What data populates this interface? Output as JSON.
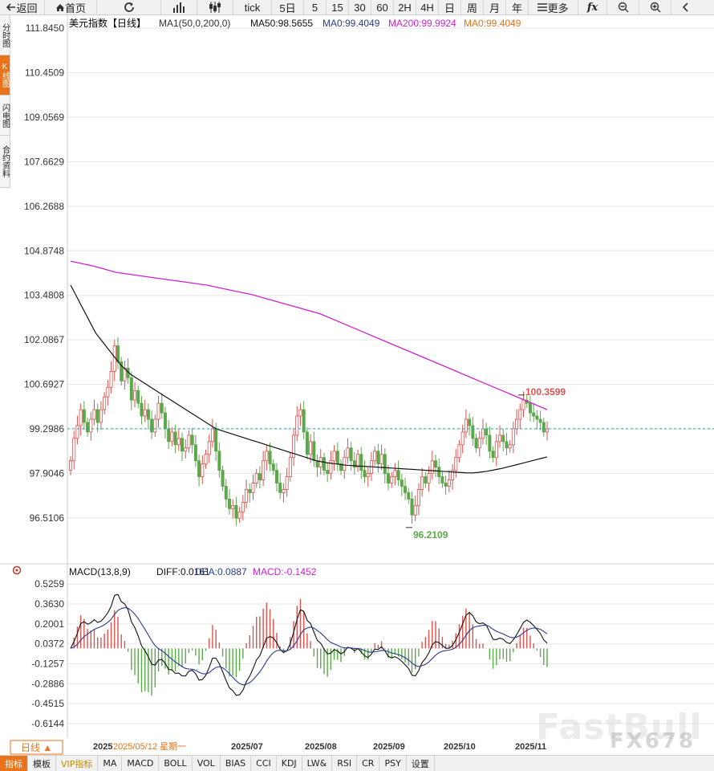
{
  "toolbar": {
    "back": "返回",
    "home": "首页",
    "tick": "tick",
    "d5": "5日",
    "m5": "5",
    "m15": "15",
    "m30": "30",
    "m60": "60",
    "h2": "2H",
    "h4": "4H",
    "day": "日",
    "week": "周",
    "month": "月",
    "year": "年",
    "more": "更多"
  },
  "sidebar": {
    "items": [
      "分时图",
      "K线图",
      "闪电图",
      "合约资料"
    ]
  },
  "bottom": {
    "period": "日线 ▲",
    "date_label": "2025/05/12 星期一",
    "tabs": [
      "指标",
      "模板",
      "VIP指标",
      "MA",
      "MACD",
      "BOLL",
      "VOL",
      "BIAS",
      "CCI",
      "KDJ",
      "LW&",
      "RSI",
      "CR",
      "PSY",
      "设置"
    ]
  },
  "watermark": {
    "text": "FastBull",
    "text2": "FX678"
  },
  "colors": {
    "up": "#d9534f",
    "down": "#5ba84a",
    "ma50": "#111111",
    "ma200": "#cc22cc",
    "diff": "#111111",
    "dea": "#2b3a8f",
    "grid": "#e6e6e6",
    "current": "#3aa0a8"
  },
  "chart_data": [
    {
      "type": "candlestick",
      "title": "美元指数【日线】",
      "legend": {
        "ma1": "MA1(50,0,200,0)",
        "ma50": "MA50:98.5655",
        "ma0a": "MA0:99.4049",
        "ma200": "MA200:99.9924",
        "ma0b": "MA0:99.4049"
      },
      "y_ticks": [
        "111.8450",
        "110.4509",
        "109.0569",
        "107.6629",
        "106.2688",
        "104.8748",
        "103.4808",
        "102.0867",
        "100.6927",
        "99.2986",
        "97.9046",
        "96.5106"
      ],
      "ylim": [
        95.4,
        112.1
      ],
      "x_ticks": [
        "2025",
        "2025/07",
        "2025/08",
        "2025/09",
        "2025/10",
        "2025/11"
      ],
      "annotations": {
        "high": "100.3599",
        "low": "96.2109"
      },
      "current_price": 99.3,
      "close": [
        98.3,
        99.0,
        99.4,
        99.9,
        99.5,
        99.2,
        99.6,
        99.9,
        99.5,
        99.9,
        100.3,
        100.6,
        101.1,
        101.9,
        101.4,
        100.8,
        101.2,
        100.9,
        100.2,
        100.5,
        100.1,
        99.7,
        99.9,
        99.6,
        99.2,
        99.6,
        100.1,
        99.8,
        99.3,
        98.9,
        99.2,
        98.8,
        99.0,
        98.6,
        98.7,
        99.1,
        98.8,
        98.3,
        97.8,
        98.2,
        98.5,
        98.9,
        99.3,
        98.6,
        98.0,
        97.5,
        97.1,
        96.8,
        96.9,
        96.5,
        96.7,
        97.0,
        97.4,
        97.3,
        97.6,
        97.9,
        97.7,
        98.3,
        98.6,
        98.2,
        98.0,
        97.6,
        97.3,
        97.4,
        97.8,
        98.4,
        99.1,
        99.7,
        99.9,
        99.2,
        98.5,
        98.9,
        98.3,
        98.1,
        98.4,
        98.0,
        97.9,
        98.3,
        98.6,
        98.2,
        98.0,
        98.4,
        98.7,
        98.3,
        98.1,
        98.5,
        98.0,
        97.8,
        97.9,
        98.3,
        98.6,
        98.2,
        98.5,
        97.9,
        97.6,
        97.8,
        98.0,
        97.7,
        97.5,
        97.3,
        97.1,
        96.6,
        96.9,
        97.4,
        97.8,
        97.6,
        97.9,
        98.3,
        98.1,
        97.8,
        97.6,
        97.5,
        97.7,
        98.0,
        98.4,
        98.8,
        99.2,
        99.6,
        99.4,
        99.0,
        98.7,
        99.0,
        99.3,
        99.1,
        98.6,
        98.4,
        98.9,
        99.1,
        98.9,
        98.7,
        98.8,
        99.3,
        99.6,
        99.9,
        100.2,
        100.1,
        99.8,
        99.7,
        99.6,
        99.5,
        99.2,
        99.3
      ],
      "ma50": [
        103.8,
        103.5,
        103.2,
        102.9,
        102.6,
        102.3,
        102.1,
        101.9,
        101.7,
        101.5,
        101.3,
        101.15,
        101.0,
        100.9,
        100.8,
        100.7,
        100.6,
        100.5,
        100.4,
        100.3,
        100.2,
        100.1,
        100.0,
        99.9,
        99.8,
        99.7,
        99.6,
        99.5,
        99.4,
        99.3,
        99.25,
        99.2,
        99.15,
        99.1,
        99.05,
        99.0,
        98.95,
        98.9,
        98.85,
        98.8,
        98.75,
        98.7,
        98.65,
        98.6,
        98.55,
        98.5,
        98.45,
        98.4,
        98.35,
        98.3,
        98.27,
        98.24,
        98.22,
        98.2,
        98.18,
        98.16,
        98.15,
        98.14,
        98.13,
        98.12,
        98.11,
        98.1,
        98.09,
        98.08,
        98.07,
        98.06,
        98.05,
        98.04,
        98.03,
        98.02,
        98.01,
        98.0,
        97.99,
        97.98,
        97.97,
        97.96,
        97.95,
        97.94,
        97.93,
        97.92,
        97.92,
        97.93,
        97.95,
        97.97,
        98.0,
        98.03,
        98.06,
        98.1,
        98.14,
        98.18,
        98.22,
        98.26,
        98.3,
        98.34,
        98.38,
        98.42
      ],
      "ma200": [
        104.55,
        104.4,
        104.2,
        104.1,
        104.0,
        103.9,
        103.8,
        103.65,
        103.5,
        103.3,
        103.1,
        102.9,
        102.6,
        102.3,
        102.0,
        101.7,
        101.4,
        101.1,
        100.8,
        100.5,
        100.2,
        99.9
      ],
      "macd": {
        "legend": {
          "name": "MACD(13,8,9)",
          "diff": "DIFF:0.0161",
          "dea": "DEA:0.0887",
          "macd": "MACD:-0.1452"
        },
        "y_ticks": [
          "0.5259",
          "0.3630",
          "0.2001",
          "0.0372",
          "-0.1257",
          "-0.2886",
          "-0.4515",
          "-0.6144"
        ],
        "ylim": [
          -0.7,
          0.58
        ]
      }
    }
  ]
}
